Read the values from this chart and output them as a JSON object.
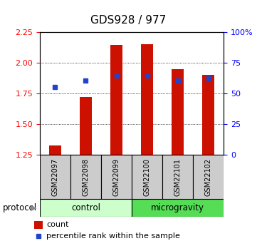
{
  "title": "GDS928 / 977",
  "samples": [
    "GSM22097",
    "GSM22098",
    "GSM22099",
    "GSM22100",
    "GSM22101",
    "GSM22102"
  ],
  "red_bar_tops": [
    1.33,
    1.72,
    2.145,
    2.15,
    1.95,
    1.9
  ],
  "blue_sq_vals": [
    1.8,
    1.855,
    1.895,
    1.895,
    1.855,
    1.875
  ],
  "bar_bottom": 1.25,
  "ylim_left": [
    1.25,
    2.25
  ],
  "ylim_right": [
    0,
    100
  ],
  "yticks_left": [
    1.25,
    1.5,
    1.75,
    2.0,
    2.25
  ],
  "yticks_right": [
    0,
    25,
    50,
    75,
    100
  ],
  "ytick_labels_right": [
    "0",
    "25",
    "50",
    "75",
    "100%"
  ],
  "grid_yticks": [
    1.5,
    1.75,
    2.0
  ],
  "bar_color": "#cc1100",
  "sq_color": "#2244cc",
  "control_label": "control",
  "microgravity_label": "microgravity",
  "protocol_label": "protocol",
  "legend_count": "count",
  "legend_percentile": "percentile rank within the sample",
  "sample_box_color": "#cccccc",
  "control_bg": "#ccffcc",
  "microgravity_bg": "#55dd55",
  "title_fontsize": 11,
  "tick_fontsize": 8,
  "bar_width": 0.4
}
